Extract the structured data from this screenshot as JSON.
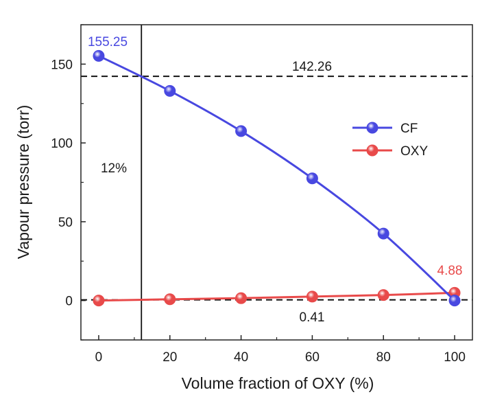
{
  "chart_data": {
    "type": "line",
    "xlabel": "Volume fraction of OXY (%)",
    "ylabel": "Vapour pressure (torr)",
    "xlim": [
      -5,
      105
    ],
    "ylim": [
      -25,
      175
    ],
    "xticks": [
      0,
      20,
      40,
      60,
      80,
      100
    ],
    "yticks": [
      0,
      50,
      100,
      150
    ],
    "x": [
      0,
      20,
      40,
      60,
      80,
      100
    ],
    "series": [
      {
        "name": "CF",
        "color": "#4848e0",
        "values": [
          155.25,
          133,
          107.5,
          77.5,
          42.5,
          0
        ]
      },
      {
        "name": "OXY",
        "color": "#e84a4a",
        "values": [
          0,
          0.8,
          1.5,
          2.5,
          3.5,
          4.88
        ]
      }
    ],
    "legend_position": "right",
    "reference_lines": {
      "horizontal": [
        142.26,
        0.41
      ],
      "vertical": [
        12
      ]
    },
    "annotations": {
      "cf_start": "155.25",
      "ref_upper": "142.26",
      "vertical_fraction": "12%",
      "oxy_end": "4.88",
      "ref_lower": "0.41"
    }
  }
}
